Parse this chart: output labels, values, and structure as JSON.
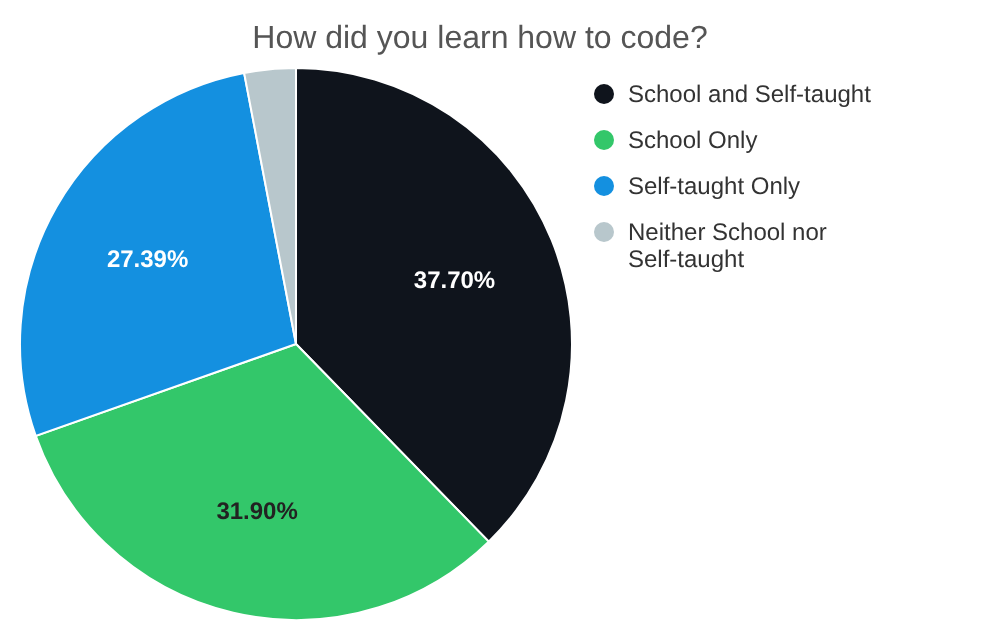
{
  "chart_data": {
    "type": "pie",
    "title": "How did you learn how to code?",
    "categories": [
      "School and Self-taught",
      "School Only",
      "Self-taught Only",
      "Neither School nor Self-taught"
    ],
    "values": [
      37.7,
      31.9,
      27.39,
      3.01
    ],
    "colors": [
      "#0f141c",
      "#33c76a",
      "#1490e0",
      "#b8c7cc"
    ],
    "value_labels": [
      "37.70%",
      "31.90%",
      "27.39%",
      null
    ],
    "legend": "right"
  }
}
